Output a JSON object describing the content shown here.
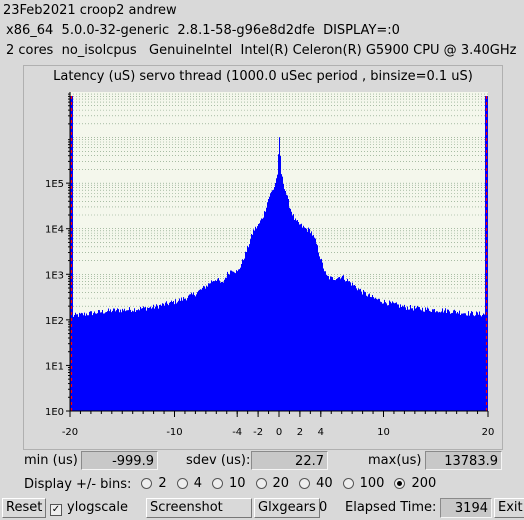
{
  "header": {
    "line1": "23Feb2021 croop2 andrew",
    "line2": "x86_64  5.0.0-32-generic  2.8.1-58-g96e8d2dfe  DISPLAY=:0",
    "line3": "2 cores  no_isolcpus   GenuineIntel  Intel(R) Celeron(R) G5900 CPU @ 3.40GHz"
  },
  "chart_data": {
    "type": "bar",
    "title": "Latency (uS) servo thread (1000.0 uSec period , binsize=0.1 uS)",
    "xlim": [
      -20,
      20
    ],
    "x_ticks": [
      -20,
      -10,
      -4,
      -2,
      0,
      2,
      4,
      10,
      20
    ],
    "y_scale": "log",
    "ylim": [
      1,
      10000000
    ],
    "y_ticks": [
      "1E0",
      "1E1",
      "1E2",
      "1E3",
      "1E4",
      "1E5"
    ],
    "y_tick_values": [
      1,
      10,
      100,
      1000,
      10000,
      100000
    ],
    "grid": true,
    "bar_color": "#0000ff",
    "edge_marker_color": "#ff0000",
    "envelope": {
      "x": [
        -20,
        -18,
        -16,
        -14,
        -12,
        -10,
        -9,
        -8,
        -7,
        -6.5,
        -6,
        -5.5,
        -5,
        -4.5,
        -4,
        -3.5,
        -3,
        -2.5,
        -2,
        -1.5,
        -1,
        -0.5,
        -0.2,
        0,
        0.2,
        0.5,
        1,
        1.5,
        2,
        2.5,
        3,
        3.5,
        4,
        4.5,
        5,
        6,
        7,
        8,
        9,
        10,
        12,
        14,
        16,
        18,
        20
      ],
      "y": [
        120,
        140,
        160,
        170,
        190,
        250,
        300,
        380,
        550,
        700,
        800,
        600,
        1000,
        1300,
        1100,
        2000,
        4000,
        9000,
        12000,
        20000,
        50000,
        80000,
        150000,
        900000,
        150000,
        80000,
        30000,
        15000,
        12000,
        10000,
        9000,
        5000,
        2000,
        900,
        800,
        900,
        600,
        400,
        300,
        250,
        190,
        170,
        160,
        140,
        130
      ]
    }
  },
  "stats": {
    "min_label": "min (us)",
    "min_value": "-999.9",
    "sdev_label": "sdev (us):",
    "sdev_value": "22.7",
    "max_label": "max(us)",
    "max_value": "13783.9"
  },
  "bins": {
    "label": "Display +/- bins:",
    "options": [
      "2",
      "4",
      "10",
      "20",
      "40",
      "100",
      "200"
    ],
    "selected": "200"
  },
  "footer": {
    "reset": "Reset",
    "ylogscale": "ylogscale",
    "ylogscale_checked": true,
    "screenshot": "Screenshot",
    "glxgears": "Glxgears",
    "glxgears_value": "0",
    "elapsed_label": "Elapsed Time:",
    "elapsed_value": "3194",
    "exit": "Exit"
  }
}
